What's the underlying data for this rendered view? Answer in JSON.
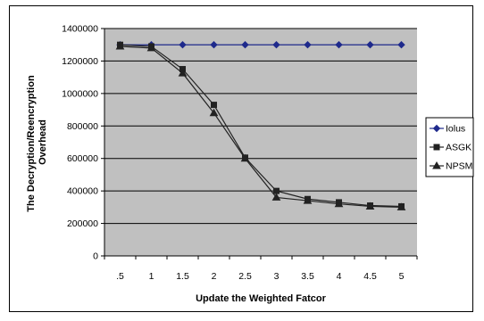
{
  "chart_data": {
    "type": "line",
    "title": "",
    "xlabel": "Update the Weighted Fatcor",
    "ylabel": "The Decryption/Re-encryption Overhead",
    "ylabel_lines": [
      "The Decryption/Reencryption",
      "Overhead"
    ],
    "x": [
      ".5",
      "1",
      "1.5",
      "2",
      "2.5",
      "3",
      "3.5",
      "4",
      "4.5",
      "5"
    ],
    "ylim": [
      0,
      1400000
    ],
    "yticks": [
      0,
      200000,
      400000,
      600000,
      800000,
      1000000,
      1200000,
      1400000
    ],
    "ytick_labels": [
      "0",
      "200000",
      "400000",
      "600000",
      "800000",
      "1000000",
      "1200000",
      "1400000"
    ],
    "plot_background": "#c0c0c0",
    "grid": "horizontal",
    "legend_position": "right",
    "series": [
      {
        "name": "Iolus",
        "marker": "diamond",
        "color": "#1f2a8c",
        "values": [
          1300000,
          1300000,
          1300000,
          1300000,
          1300000,
          1300000,
          1300000,
          1300000,
          1300000,
          1300000
        ]
      },
      {
        "name": "ASGK",
        "marker": "square",
        "color": "#222222",
        "values": [
          1300000,
          1290000,
          1150000,
          930000,
          605000,
          400000,
          350000,
          330000,
          310000,
          305000
        ]
      },
      {
        "name": "NPSM",
        "marker": "triangle",
        "color": "#222222",
        "values": [
          1290000,
          1280000,
          1125000,
          880000,
          600000,
          360000,
          340000,
          320000,
          305000,
          300000
        ]
      }
    ]
  }
}
